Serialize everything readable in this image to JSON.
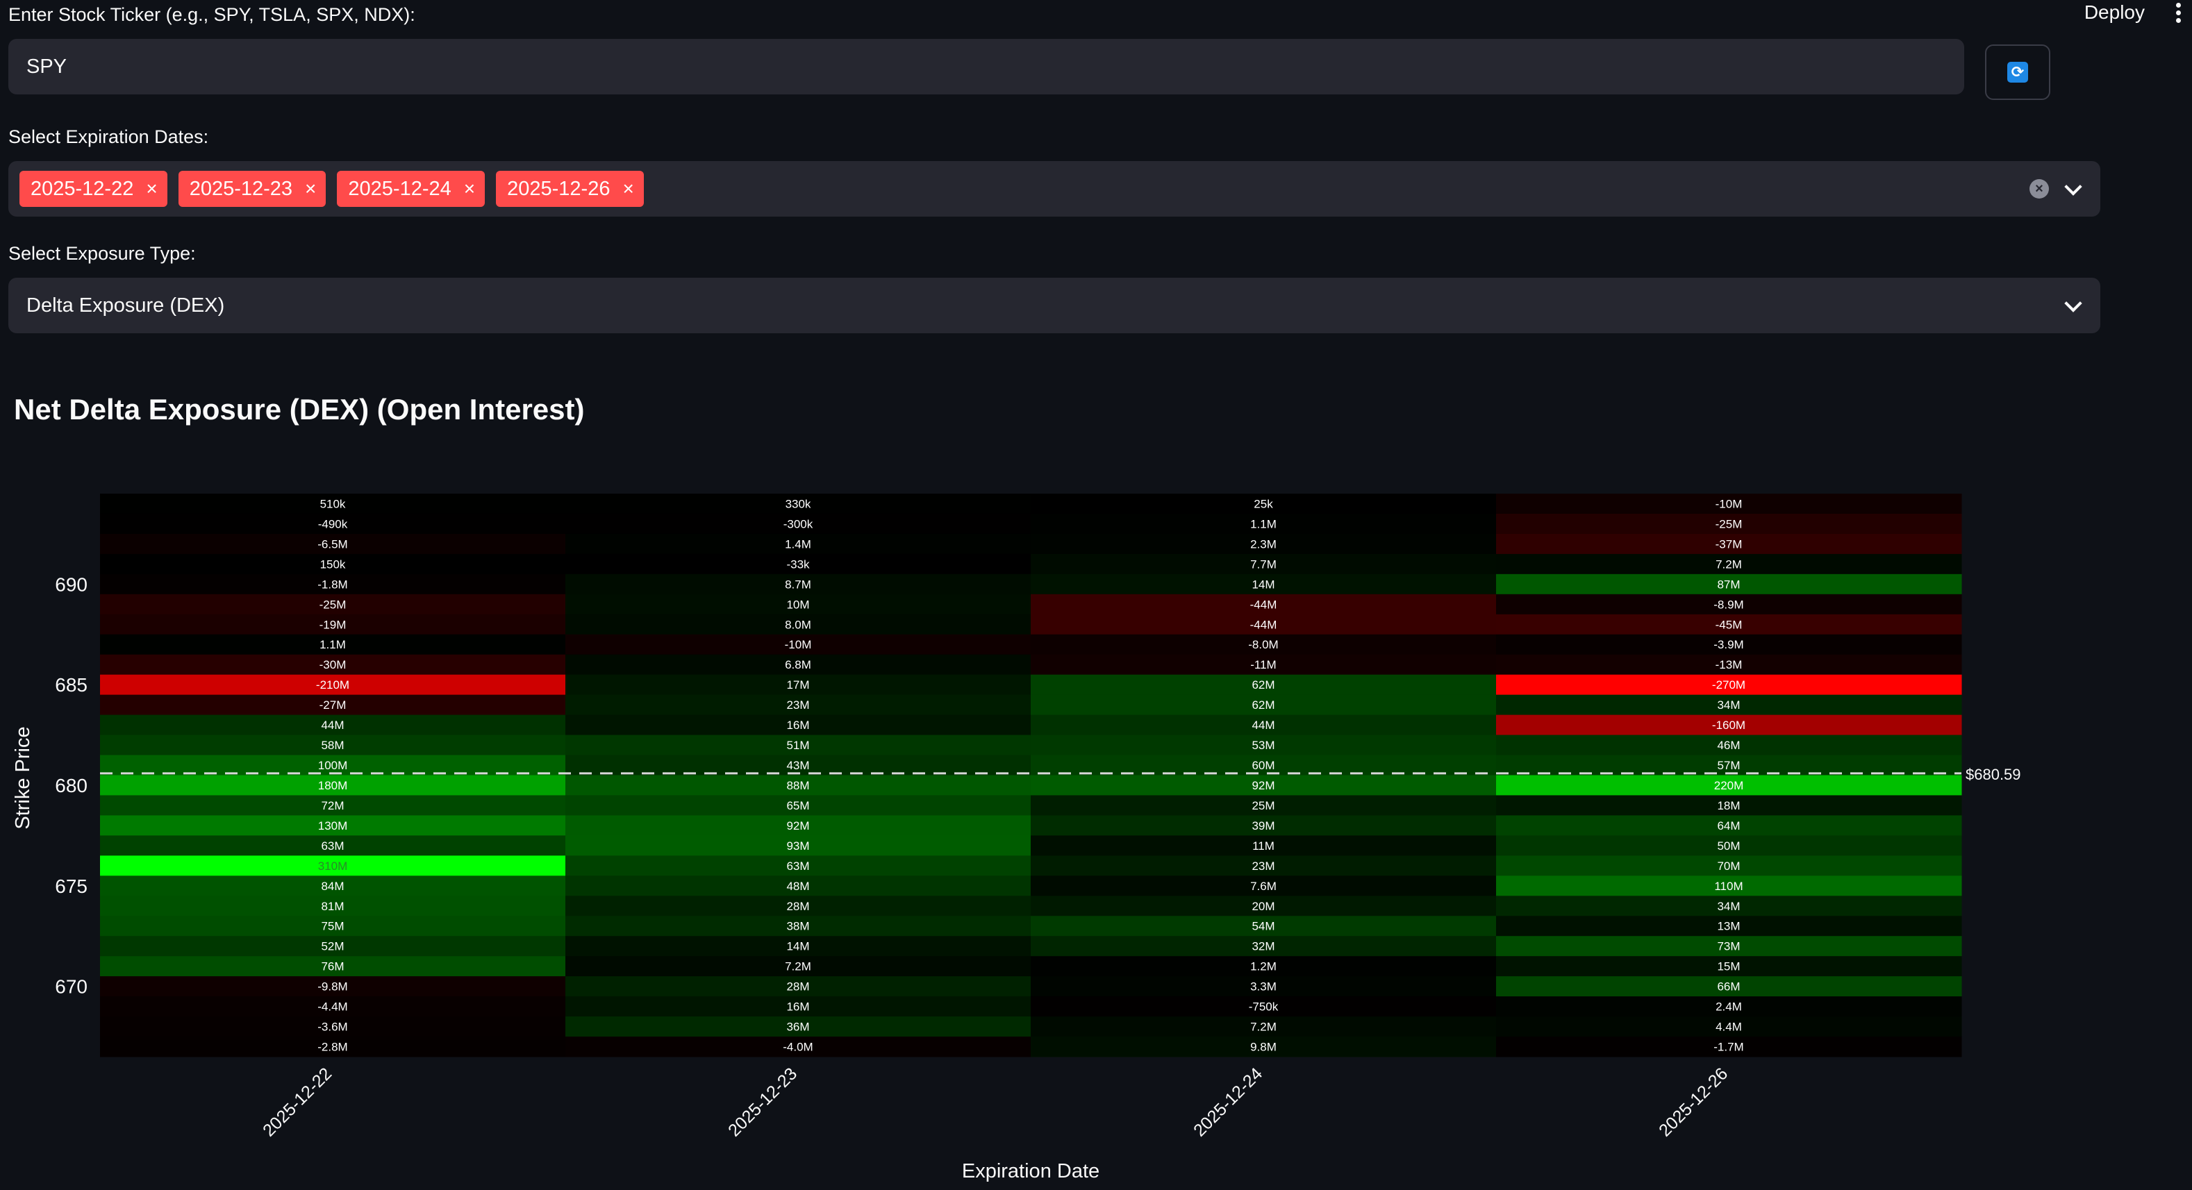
{
  "header": {
    "deploy_label": "Deploy"
  },
  "ticker": {
    "label": "Enter Stock Ticker (e.g., SPY, TSLA, SPX, NDX):",
    "value": "SPY",
    "refresh_icon": "refresh-icon"
  },
  "expirations": {
    "label": "Select Expiration Dates:",
    "selected": [
      "2025-12-22",
      "2025-12-23",
      "2025-12-24",
      "2025-12-26"
    ],
    "remove_symbol": "×",
    "tag_color": "#ff4b4b"
  },
  "exposure": {
    "label": "Select Exposure Type:",
    "value": "Delta Exposure (DEX)"
  },
  "chart_title": "Net Delta Exposure (DEX) (Open Interest)",
  "chart_data": {
    "type": "heatmap",
    "title": "Net Delta Exposure (DEX) (Open Interest)",
    "xlabel": "Expiration Date",
    "ylabel": "Strike Price",
    "x": [
      "2025-12-22",
      "2025-12-23",
      "2025-12-24",
      "2025-12-26"
    ],
    "y": [
      694,
      693,
      692,
      691,
      690,
      689,
      688,
      687,
      686,
      685,
      684,
      683,
      682,
      681,
      680,
      679,
      678,
      677,
      676,
      675,
      674,
      673,
      672,
      671,
      670,
      669,
      668,
      667
    ],
    "ytick_labels": [
      "690",
      "685",
      "680",
      "675",
      "670"
    ],
    "ytick_values": [
      690,
      685,
      680,
      675,
      670
    ],
    "colorscale": {
      "negative": "#ff0000",
      "zero": "#000000",
      "positive": "#00ff00",
      "abs_max": 310000000
    },
    "current_price": 680.59,
    "current_price_label": "$680.59",
    "columns": [
      {
        "labels": [
          "510k",
          "-490k",
          "-6.5M",
          "150k",
          "-1.8M",
          "-25M",
          "-19M",
          "1.1M",
          "-30M",
          "-210M",
          "-27M",
          "44M",
          "58M",
          "100M",
          "180M",
          "72M",
          "130M",
          "63M",
          "310M",
          "84M",
          "81M",
          "75M",
          "52M",
          "76M",
          "-9.8M",
          "-4.4M",
          "-3.6M",
          "-2.8M"
        ],
        "values": [
          510000,
          -490000,
          -6500000,
          150000,
          -1800000,
          -25000000,
          -19000000,
          1100000,
          -30000000,
          -210000000,
          -27000000,
          44000000,
          58000000,
          100000000,
          180000000,
          72000000,
          130000000,
          63000000,
          310000000,
          84000000,
          81000000,
          75000000,
          52000000,
          76000000,
          -9800000,
          -4400000,
          -3600000,
          -2800000
        ]
      },
      {
        "labels": [
          "330k",
          "-300k",
          "1.4M",
          "-33k",
          "8.7M",
          "10M",
          "8.0M",
          "-10M",
          "6.8M",
          "17M",
          "23M",
          "16M",
          "51M",
          "43M",
          "88M",
          "65M",
          "92M",
          "93M",
          "63M",
          "48M",
          "28M",
          "38M",
          "14M",
          "7.2M",
          "28M",
          "16M",
          "36M",
          "-4.0M"
        ],
        "values": [
          330000,
          -300000,
          1400000,
          -33000,
          8700000,
          10000000,
          8000000,
          -10000000,
          6800000,
          17000000,
          23000000,
          16000000,
          51000000,
          43000000,
          88000000,
          65000000,
          92000000,
          93000000,
          63000000,
          48000000,
          28000000,
          38000000,
          14000000,
          7200000,
          28000000,
          16000000,
          36000000,
          -4000000
        ]
      },
      {
        "labels": [
          "25k",
          "1.1M",
          "2.3M",
          "7.7M",
          "14M",
          "-44M",
          "-44M",
          "-8.0M",
          "-11M",
          "62M",
          "62M",
          "44M",
          "53M",
          "60M",
          "92M",
          "25M",
          "39M",
          "11M",
          "23M",
          "7.6M",
          "20M",
          "54M",
          "32M",
          "1.2M",
          "3.3M",
          "-750k",
          "7.2M",
          "9.8M"
        ],
        "values": [
          25000,
          1100000,
          2300000,
          7700000,
          14000000,
          -44000000,
          -44000000,
          -8000000,
          -11000000,
          62000000,
          62000000,
          44000000,
          53000000,
          60000000,
          92000000,
          25000000,
          39000000,
          11000000,
          23000000,
          7600000,
          20000000,
          54000000,
          32000000,
          1200000,
          3300000,
          -750000,
          7200000,
          9800000
        ]
      },
      {
        "labels": [
          "-10M",
          "-25M",
          "-37M",
          "7.2M",
          "87M",
          "-8.9M",
          "-45M",
          "-3.9M",
          "-13M",
          "-270M",
          "34M",
          "-160M",
          "46M",
          "57M",
          "220M",
          "18M",
          "64M",
          "50M",
          "70M",
          "110M",
          "34M",
          "13M",
          "73M",
          "15M",
          "66M",
          "2.4M",
          "4.4M",
          "-1.7M"
        ],
        "values": [
          -10000000,
          -25000000,
          -37000000,
          7200000,
          87000000,
          -8900000,
          -45000000,
          -3900000,
          -13000000,
          -270000000,
          34000000,
          -160000000,
          46000000,
          57000000,
          220000000,
          18000000,
          64000000,
          50000000,
          70000000,
          110000000,
          34000000,
          13000000,
          73000000,
          15000000,
          66000000,
          2400000,
          4400000,
          -1700000
        ]
      }
    ]
  }
}
